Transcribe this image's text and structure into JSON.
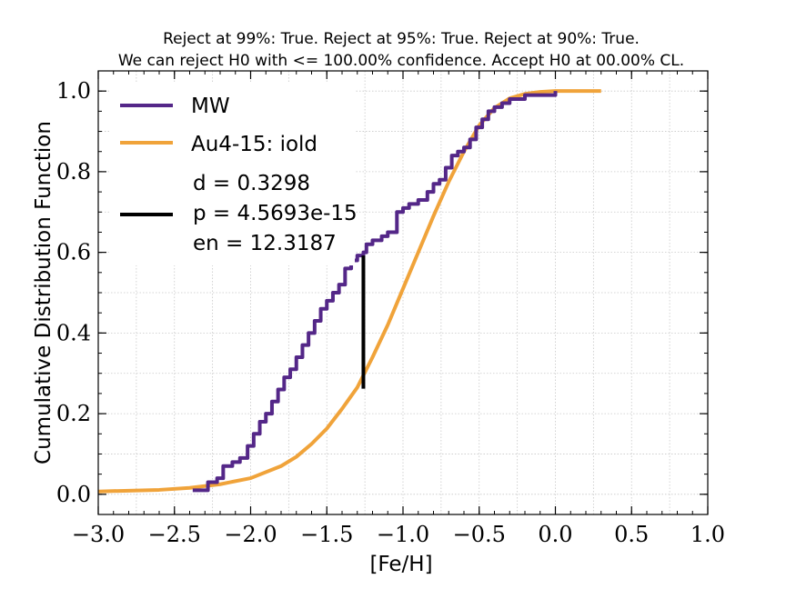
{
  "chart_data": {
    "type": "line",
    "title": "Reject at 99%: True. Reject at 95%: True. Reject at 90%: True.",
    "subtitle": "We can reject H0 with <= 100.00% confidence. Accept H0 at 00.00% CL.",
    "xlabel": "[Fe/H]",
    "ylabel": "Cumulative Distribution Function",
    "xlim": [
      -3.0,
      1.0
    ],
    "ylim": [
      -0.05,
      1.05
    ],
    "xticks": [
      -3.0,
      -2.5,
      -2.0,
      -1.5,
      -1.0,
      -0.5,
      0.0,
      0.5,
      1.0
    ],
    "xtick_labels": [
      "−3.0",
      "−2.5",
      "−2.0",
      "−1.5",
      "−1.0",
      "−0.5",
      "0.0",
      "0.5",
      "1.0"
    ],
    "yticks": [
      0.0,
      0.2,
      0.4,
      0.6,
      0.8,
      1.0
    ],
    "ytick_labels": [
      "0.0",
      "0.2",
      "0.4",
      "0.6",
      "0.8",
      "1.0"
    ],
    "grid": true,
    "legend_position": "top-left",
    "series": [
      {
        "name": "MW",
        "color": "#542788",
        "step": true,
        "x": [
          -2.38,
          -2.28,
          -2.22,
          -2.18,
          -2.12,
          -2.07,
          -2.02,
          -1.98,
          -1.94,
          -1.9,
          -1.86,
          -1.82,
          -1.78,
          -1.74,
          -1.7,
          -1.66,
          -1.62,
          -1.58,
          -1.54,
          -1.5,
          -1.46,
          -1.42,
          -1.38,
          -1.34,
          -1.3,
          -1.26,
          -1.24,
          -1.2,
          -1.14,
          -1.1,
          -1.04,
          -1.0,
          -0.96,
          -0.9,
          -0.84,
          -0.8,
          -0.76,
          -0.72,
          -0.68,
          -0.64,
          -0.6,
          -0.56,
          -0.52,
          -0.48,
          -0.44,
          -0.4,
          -0.35,
          -0.3,
          -0.2,
          -0.1,
          0.0
        ],
        "y": [
          0.01,
          0.03,
          0.04,
          0.07,
          0.08,
          0.09,
          0.12,
          0.15,
          0.18,
          0.2,
          0.23,
          0.26,
          0.29,
          0.31,
          0.34,
          0.37,
          0.4,
          0.43,
          0.46,
          0.48,
          0.5,
          0.52,
          0.56,
          0.58,
          0.592,
          0.6,
          0.62,
          0.63,
          0.64,
          0.65,
          0.7,
          0.71,
          0.72,
          0.73,
          0.75,
          0.77,
          0.78,
          0.81,
          0.84,
          0.85,
          0.86,
          0.88,
          0.91,
          0.93,
          0.95,
          0.96,
          0.97,
          0.98,
          0.99,
          0.99,
          1.0
        ]
      },
      {
        "name": "Au4-15: iold",
        "color": "#f0a33a",
        "step": false,
        "x": [
          -3.0,
          -2.6,
          -2.4,
          -2.2,
          -2.0,
          -1.8,
          -1.7,
          -1.6,
          -1.5,
          -1.4,
          -1.3,
          -1.2,
          -1.1,
          -1.0,
          -0.9,
          -0.8,
          -0.7,
          -0.6,
          -0.5,
          -0.4,
          -0.3,
          -0.2,
          -0.1,
          0.0,
          0.1,
          0.3
        ],
        "y": [
          0.007,
          0.011,
          0.016,
          0.025,
          0.04,
          0.07,
          0.093,
          0.125,
          0.163,
          0.212,
          0.265,
          0.34,
          0.42,
          0.51,
          0.6,
          0.69,
          0.775,
          0.85,
          0.915,
          0.958,
          0.982,
          0.993,
          0.998,
          1.0,
          1.0,
          1.0
        ]
      }
    ],
    "ks_line": {
      "x": -1.26,
      "y_low": 0.262,
      "y_high": 0.592,
      "color": "#000000"
    },
    "legend_stats": [
      "d = 0.3298",
      "p = 4.5693e-15",
      "en = 12.3187"
    ]
  }
}
